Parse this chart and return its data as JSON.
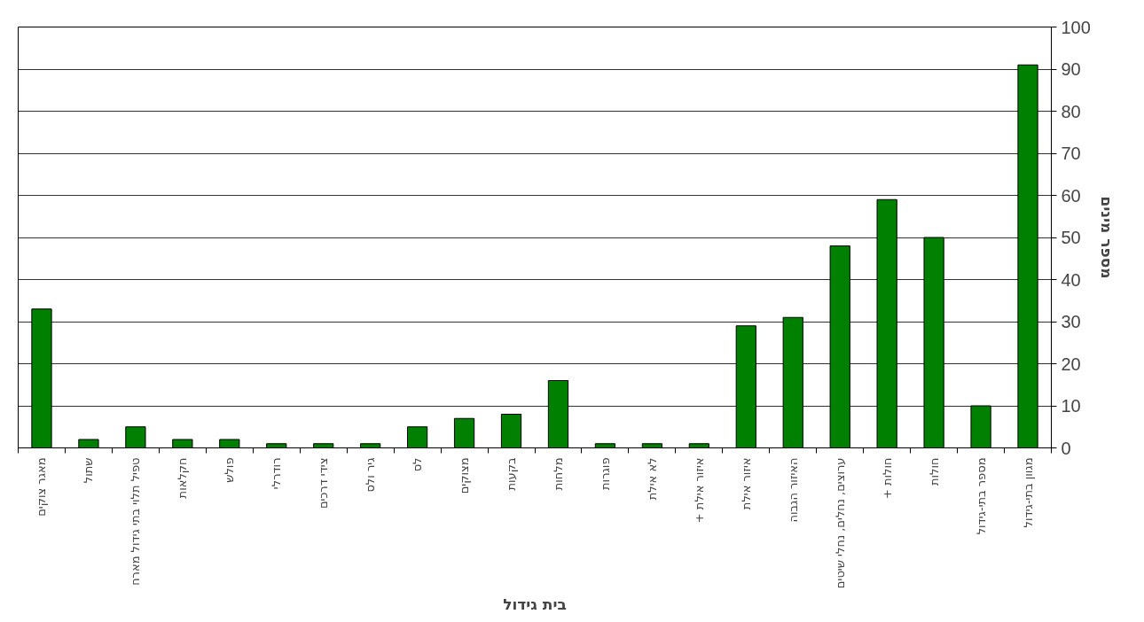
{
  "chart_data": {
    "type": "bar",
    "xlabel": "בית גידול",
    "ylabel": "מספר מינים",
    "categories": [
      "מאגר צוקים",
      "שתול",
      "טפיל תלוי בתי גידול מארח",
      "חקלאות",
      "פולש",
      "רודרלי",
      "צידי דרכים",
      "גיר ולס",
      "לס",
      "מצוקים",
      "בקעות",
      "מלחות",
      "פוגרות",
      "לא אילת",
      "איזור אילת +",
      "איזור אילת",
      "האיזור הגבוה",
      "ערוצים, נחלים, נחלי שיטים",
      "חולות +",
      "חולות",
      "מספר בתי-גידול",
      "מגוון בתי-גידול"
    ],
    "values": [
      33,
      2,
      5,
      2,
      2,
      1,
      1,
      1,
      5,
      7,
      8,
      16,
      1,
      1,
      1,
      29,
      31,
      48,
      59,
      50,
      10,
      91
    ],
    "color": "#008000",
    "ylim": [
      0,
      100
    ],
    "yticks": [
      0,
      10,
      20,
      30,
      40,
      50,
      60,
      70,
      80,
      90,
      100
    ],
    "grid": "y"
  }
}
